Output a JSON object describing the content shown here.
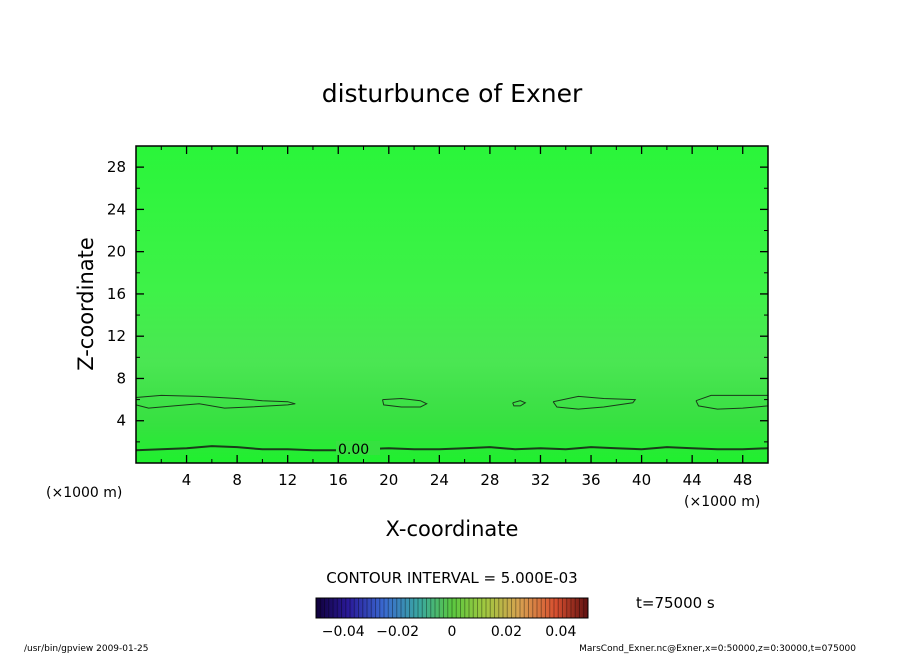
{
  "chart_data": {
    "type": "heatmap",
    "title": "disturbunce of Exner",
    "xlabel": "X-coordinate",
    "ylabel": "Z-coordinate",
    "x_unit_left": "(×1000 m)",
    "x_unit_right": "(×1000 m)",
    "xlim": [
      0,
      50
    ],
    "ylim": [
      0,
      30
    ],
    "x_ticks": [
      4,
      8,
      12,
      16,
      20,
      24,
      28,
      32,
      36,
      40,
      44,
      48
    ],
    "y_ticks": [
      4,
      8,
      12,
      16,
      20,
      24,
      28
    ],
    "contour_interval_text": "CONTOUR INTERVAL = 5.000E-03",
    "time_text": "t=75000 s",
    "contour_label": "0.00",
    "contour_zero_z": [
      1.2,
      1.3,
      1.4,
      1.6,
      1.5,
      1.3,
      1.3,
      1.2,
      1.2,
      1.3,
      1.4,
      1.3,
      1.3,
      1.4,
      1.5,
      1.3,
      1.4,
      1.3,
      1.5,
      1.4,
      1.3,
      1.5,
      1.4,
      1.3,
      1.3,
      1.4
    ],
    "upper_contours": [
      {
        "x": [
          0,
          2,
          5,
          8,
          10,
          12,
          12.6,
          12,
          9,
          7,
          5,
          3,
          1,
          0
        ],
        "z": [
          6.2,
          6.4,
          6.3,
          6.1,
          5.9,
          5.8,
          5.6,
          5.5,
          5.3,
          5.2,
          5.6,
          5.4,
          5.2,
          5.5
        ]
      },
      {
        "x": [
          19.5,
          21,
          22.5,
          23,
          22.5,
          21,
          19.6,
          19.5
        ],
        "z": [
          6.0,
          6.1,
          5.9,
          5.6,
          5.3,
          5.3,
          5.5,
          6.0
        ]
      },
      {
        "x": [
          29.8,
          30.4,
          30.8,
          30.4,
          29.9,
          29.8
        ],
        "z": [
          5.7,
          5.9,
          5.7,
          5.4,
          5.4,
          5.7
        ]
      },
      {
        "x": [
          33,
          35,
          37,
          39.5,
          39.3,
          37,
          35,
          33.3,
          33
        ],
        "z": [
          5.8,
          6.3,
          6.1,
          6.0,
          5.7,
          5.3,
          5.1,
          5.3,
          5.8
        ]
      },
      {
        "x": [
          44.3,
          45.5,
          47.5,
          50,
          50,
          48,
          46,
          44.5,
          44.3
        ],
        "z": [
          5.9,
          6.4,
          6.4,
          6.4,
          5.4,
          5.2,
          5.1,
          5.4,
          5.9
        ]
      }
    ],
    "colorbar_ticks": [
      "−0.04",
      "−0.02",
      "0",
      "0.02",
      "0.04"
    ],
    "colorbar_range": [
      -0.05,
      0.05
    ]
  },
  "footer": {
    "left": "/usr/bin/gpview  2009-01-25",
    "right": "MarsCond_Exner.nc@Exner,x=0:50000,z=0:30000,t=075000"
  },
  "colors": {
    "field_top": "#2cf73c",
    "field_mid": "#47e84f",
    "field_bottom": "#22ee30",
    "contour": "#1a3a1a"
  }
}
